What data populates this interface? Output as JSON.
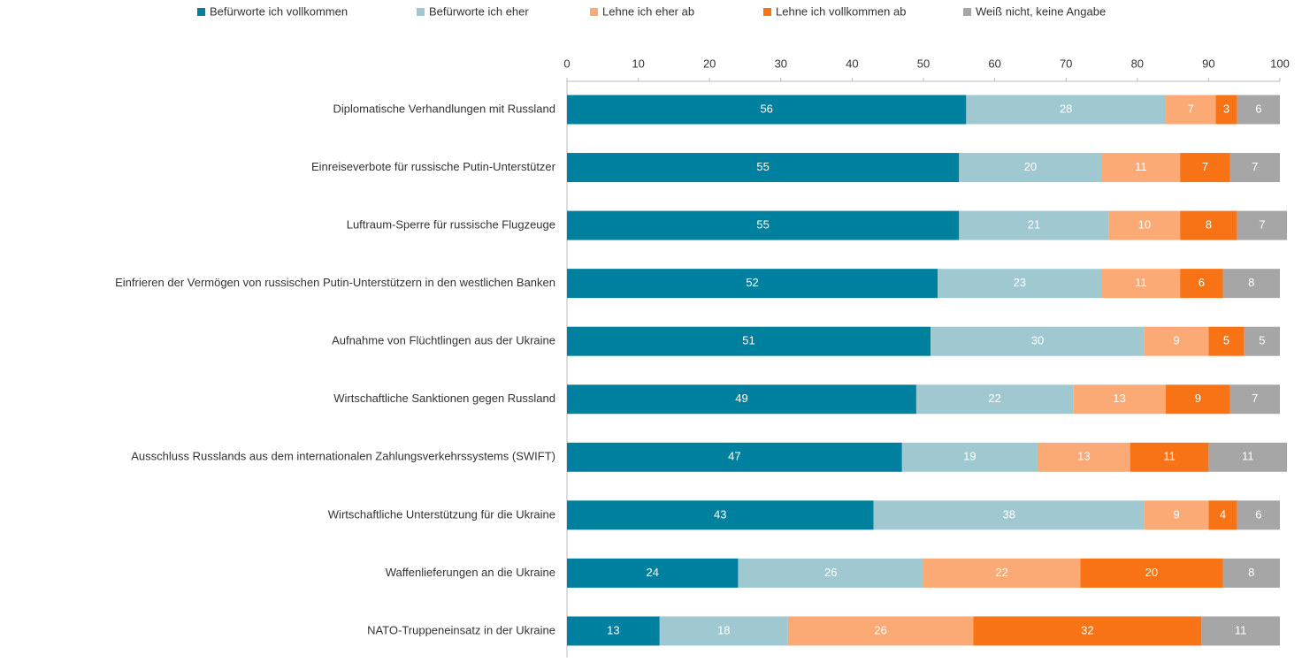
{
  "chart_data": {
    "type": "stacked_barh",
    "categories": [
      "Diplomatische Verhandlungen mit Russland",
      "Einreiseverbote für russische Putin-Unterstützer",
      "Luftraum-Sperre für russische Flugzeuge",
      "Einfrieren der Vermögen von russischen Putin-Unterstützern in den westlichen Banken",
      "Aufnahme von Flüchtlingen aus der Ukraine",
      "Wirtschaftliche Sanktionen gegen Russland",
      "Ausschluss Russlands aus dem internationalen Zahlungsverkehrssystems (SWIFT)",
      "Wirtschaftliche Unterstützung für die Ukraine",
      "Waffenlieferungen an die Ukraine",
      "NATO-Truppeneinsatz in der Ukraine"
    ],
    "series": [
      {
        "name": "Befürworte ich vollkommen",
        "color": "#00809f",
        "values": [
          56,
          55,
          55,
          52,
          51,
          49,
          47,
          43,
          24,
          13
        ]
      },
      {
        "name": "Befürworte ich eher",
        "color": "#a0c8d1",
        "values": [
          28,
          20,
          21,
          23,
          30,
          22,
          19,
          38,
          26,
          18
        ]
      },
      {
        "name": "Lehne ich eher ab",
        "color": "#fcaa75",
        "values": [
          7,
          11,
          10,
          11,
          9,
          13,
          13,
          9,
          22,
          26
        ]
      },
      {
        "name": "Lehne ich vollkommen ab",
        "color": "#f87316",
        "values": [
          3,
          7,
          8,
          6,
          5,
          9,
          11,
          4,
          20,
          32
        ]
      },
      {
        "name": "Weiß nicht, keine Angabe",
        "color": "#a6a6a6",
        "values": [
          6,
          7,
          7,
          8,
          5,
          7,
          11,
          6,
          8,
          11
        ]
      }
    ],
    "xlim": [
      0,
      100
    ],
    "xticks": [
      0,
      10,
      20,
      30,
      40,
      50,
      60,
      70,
      80,
      90,
      100
    ],
    "legend": "top"
  }
}
